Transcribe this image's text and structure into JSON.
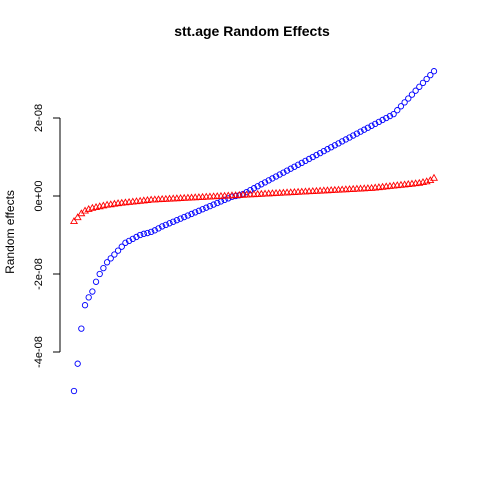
{
  "chart_data": {
    "type": "scatter",
    "title": "stt.age Random Effects",
    "xlabel": "",
    "ylabel": "Random effects",
    "ylim": [
      -4.2e-08,
      3e-08
    ],
    "yticks": [
      -4e-08,
      -2e-08,
      0,
      2e-08
    ],
    "ytick_labels": [
      "-4e-08",
      "-2e-08",
      "0e+00",
      "2e-08"
    ],
    "grid": false,
    "legend": "none",
    "series": [
      {
        "marker": "circle",
        "color": "#0000ff",
        "x": [
          1,
          6,
          11,
          16,
          21,
          26,
          31,
          36,
          41,
          46,
          51,
          56,
          61,
          66,
          71,
          76,
          81,
          86,
          91,
          96,
          101,
          106,
          111,
          116,
          121,
          126,
          131,
          136,
          141,
          146,
          151,
          156,
          161,
          166,
          171,
          176,
          181,
          186,
          191,
          196,
          201,
          206,
          211,
          216,
          221,
          226,
          231,
          236,
          241,
          246,
          251,
          256,
          261,
          266,
          271,
          276,
          281,
          286,
          291,
          296,
          301,
          306,
          311,
          316,
          321,
          326,
          331,
          336,
          341,
          346,
          351,
          356,
          361,
          366,
          371,
          376,
          381,
          386,
          391,
          396,
          401,
          406,
          411,
          416,
          421,
          426,
          431,
          436,
          441,
          446,
          451,
          456,
          461,
          466,
          471,
          476,
          481,
          486,
          491
        ],
        "values": [
          -5e-08,
          -4.3e-08,
          -3.4e-08,
          -2.8e-08,
          -2.6e-08,
          -2.45e-08,
          -2.2e-08,
          -2e-08,
          -1.85e-08,
          -1.7e-08,
          -1.6e-08,
          -1.5e-08,
          -1.4e-08,
          -1.3e-08,
          -1.2e-08,
          -1.15e-08,
          -1.1e-08,
          -1.05e-08,
          -1e-08,
          -9.7e-09,
          -9.5e-09,
          -9.2e-09,
          -8.8e-09,
          -8.3e-09,
          -7.8e-09,
          -7.4e-09,
          -7e-09,
          -6.6e-09,
          -6.2e-09,
          -5.8e-09,
          -5.4e-09,
          -5e-09,
          -4.6e-09,
          -4.2e-09,
          -3.8e-09,
          -3.4e-09,
          -3e-09,
          -2.6e-09,
          -2.2e-09,
          -1.8e-09,
          -1.4e-09,
          -1e-09,
          -6e-10,
          -2e-10,
          0,
          2e-10,
          5e-10,
          1e-09,
          1.5e-09,
          2e-09,
          2.5e-09,
          3e-09,
          3.5e-09,
          4e-09,
          4.5e-09,
          5e-09,
          5.5e-09,
          6e-09,
          6.5e-09,
          7e-09,
          7.5e-09,
          8e-09,
          8.5e-09,
          9e-09,
          9.5e-09,
          1e-08,
          1.05e-08,
          1.1e-08,
          1.15e-08,
          1.2e-08,
          1.25e-08,
          1.3e-08,
          1.35e-08,
          1.4e-08,
          1.45e-08,
          1.5e-08,
          1.55e-08,
          1.6e-08,
          1.65e-08,
          1.7e-08,
          1.75e-08,
          1.8e-08,
          1.85e-08,
          1.9e-08,
          1.95e-08,
          2e-08,
          2.05e-08,
          2.1e-08,
          2.2e-08,
          2.3e-08,
          2.4e-08,
          2.5e-08,
          2.6e-08,
          2.7e-08,
          2.8e-08,
          2.9e-08,
          3e-08,
          3.1e-08,
          3.2e-08
        ]
      },
      {
        "marker": "triangle",
        "color": "#ff0000",
        "x": [
          1,
          6,
          11,
          16,
          21,
          26,
          31,
          36,
          41,
          46,
          51,
          56,
          61,
          66,
          71,
          76,
          81,
          86,
          91,
          96,
          101,
          106,
          111,
          116,
          121,
          126,
          131,
          136,
          141,
          146,
          151,
          156,
          161,
          166,
          171,
          176,
          181,
          186,
          191,
          196,
          201,
          206,
          211,
          216,
          221,
          226,
          231,
          236,
          241,
          246,
          251,
          256,
          261,
          266,
          271,
          276,
          281,
          286,
          291,
          296,
          301,
          306,
          311,
          316,
          321,
          326,
          331,
          336,
          341,
          346,
          351,
          356,
          361,
          366,
          371,
          376,
          381,
          386,
          391,
          396,
          401,
          406,
          411,
          416,
          421,
          426,
          431,
          436,
          441,
          446,
          451,
          456,
          461,
          466,
          471,
          476,
          481,
          486,
          491
        ],
        "values": [
          -6.5e-09,
          -5.5e-09,
          -4.5e-09,
          -3.8e-09,
          -3.4e-09,
          -3.1e-09,
          -2.9e-09,
          -2.7e-09,
          -2.5e-09,
          -2.3e-09,
          -2.2e-09,
          -2.05e-09,
          -1.9e-09,
          -1.8e-09,
          -1.7e-09,
          -1.6e-09,
          -1.5e-09,
          -1.4e-09,
          -1.3e-09,
          -1.2e-09,
          -1.1e-09,
          -1e-09,
          -9.5e-10,
          -9e-10,
          -8.5e-10,
          -8e-10,
          -7.5e-10,
          -7e-10,
          -6.5e-10,
          -6e-10,
          -5.5e-10,
          -5e-10,
          -4.5e-10,
          -4e-10,
          -3.5e-10,
          -3e-10,
          -2.5e-10,
          -2e-10,
          -1.5e-10,
          -1e-10,
          -5e-11,
          0,
          5e-11,
          1e-10,
          1.5e-10,
          2e-10,
          2.5e-10,
          3e-10,
          3.5e-10,
          4e-10,
          4.5e-10,
          5e-10,
          5.5e-10,
          6e-10,
          6.5e-10,
          7e-10,
          7.5e-10,
          8e-10,
          8.5e-10,
          9e-10,
          9.5e-10,
          1e-09,
          1.05e-09,
          1.1e-09,
          1.15e-09,
          1.2e-09,
          1.25e-09,
          1.3e-09,
          1.35e-09,
          1.4e-09,
          1.45e-09,
          1.5e-09,
          1.55e-09,
          1.6e-09,
          1.65e-09,
          1.7e-09,
          1.75e-09,
          1.8e-09,
          1.85e-09,
          1.9e-09,
          1.95e-09,
          2e-09,
          2.1e-09,
          2.2e-09,
          2.3e-09,
          2.4e-09,
          2.5e-09,
          2.6e-09,
          2.7e-09,
          2.8e-09,
          2.9e-09,
          3e-09,
          3.1e-09,
          3.2e-09,
          3.3e-09,
          3.5e-09,
          3.7e-09,
          4e-09,
          4.6e-09
        ]
      }
    ]
  }
}
